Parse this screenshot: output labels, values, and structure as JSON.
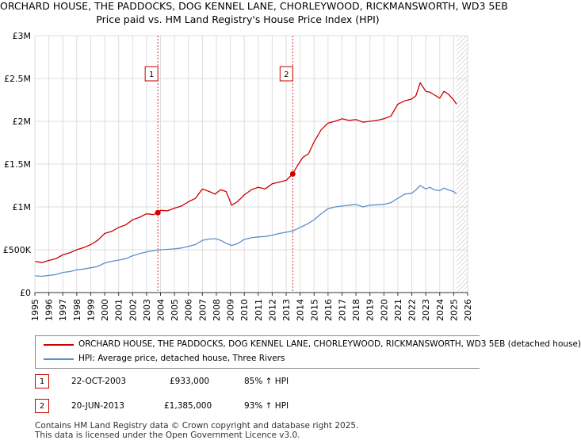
{
  "header": {
    "title": "ORCHARD HOUSE, THE PADDOCKS, DOG KENNEL LANE, CHORLEYWOOD, RICKMANSWORTH, WD3 5EB",
    "subtitle": "Price paid vs. HM Land Registry's House Price Index (HPI)"
  },
  "colors": {
    "property": "#cc0000",
    "hpi": "#5b8fc9",
    "sale_marker": "#cc0000",
    "future_hatch": "#bbbbbb"
  },
  "chart_data": {
    "type": "line",
    "title": "Price paid vs. HM Land Registry's House Price Index (HPI)",
    "xlabel": "",
    "ylabel": "",
    "xlim": [
      1995,
      2026
    ],
    "ylim": [
      0,
      3000000
    ],
    "yticks": [
      {
        "value": 0,
        "label": "£0"
      },
      {
        "value": 500000,
        "label": "£500K"
      },
      {
        "value": 1000000,
        "label": "£1M"
      },
      {
        "value": 1500000,
        "label": "£1.5M"
      },
      {
        "value": 2000000,
        "label": "£2M"
      },
      {
        "value": 2500000,
        "label": "£2.5M"
      },
      {
        "value": 3000000,
        "label": "£3M"
      }
    ],
    "xticks": [
      "1995",
      "1996",
      "1997",
      "1998",
      "1999",
      "2000",
      "2001",
      "2002",
      "2003",
      "2004",
      "2005",
      "2006",
      "2007",
      "2008",
      "2009",
      "2010",
      "2011",
      "2012",
      "2013",
      "2014",
      "2015",
      "2016",
      "2017",
      "2018",
      "2019",
      "2020",
      "2021",
      "2022",
      "2023",
      "2024",
      "2025",
      "2026"
    ],
    "series": [
      {
        "name": "ORCHARD HOUSE, THE PADDOCKS, DOG KENNEL LANE, CHORLEYWOOD, RICKMANSWORTH, WD3 5EB (detached house)",
        "color": "#cc0000",
        "x": [
          1995.0,
          1995.5,
          1996.0,
          1996.5,
          1997.0,
          1997.5,
          1998.0,
          1998.5,
          1999.0,
          1999.5,
          2000.0,
          2000.5,
          2001.0,
          2001.5,
          2002.0,
          2002.5,
          2003.0,
          2003.5,
          2003.81,
          2004.0,
          2004.5,
          2005.0,
          2005.5,
          2006.0,
          2006.5,
          2007.0,
          2007.5,
          2007.9,
          2008.3,
          2008.7,
          2009.1,
          2009.5,
          2010.0,
          2010.5,
          2011.0,
          2011.5,
          2012.0,
          2012.5,
          2013.0,
          2013.47,
          2013.8,
          2014.2,
          2014.6,
          2015.0,
          2015.5,
          2016.0,
          2016.5,
          2017.0,
          2017.5,
          2018.0,
          2018.5,
          2019.0,
          2019.5,
          2020.0,
          2020.5,
          2021.0,
          2021.5,
          2022.0,
          2022.3,
          2022.6,
          2023.0,
          2023.3,
          2023.6,
          2024.0,
          2024.3,
          2024.6,
          2025.0,
          2025.2
        ],
        "values": [
          365000,
          350000,
          375000,
          395000,
          440000,
          465000,
          500000,
          525000,
          560000,
          610000,
          690000,
          715000,
          760000,
          790000,
          850000,
          880000,
          920000,
          910000,
          933000,
          960000,
          955000,
          985000,
          1010000,
          1060000,
          1100000,
          1210000,
          1180000,
          1150000,
          1200000,
          1180000,
          1020000,
          1060000,
          1140000,
          1200000,
          1230000,
          1210000,
          1270000,
          1290000,
          1310000,
          1385000,
          1480000,
          1580000,
          1620000,
          1760000,
          1900000,
          1980000,
          2000000,
          2030000,
          2010000,
          2020000,
          1990000,
          2000000,
          2010000,
          2030000,
          2060000,
          2200000,
          2240000,
          2260000,
          2300000,
          2450000,
          2350000,
          2340000,
          2310000,
          2270000,
          2350000,
          2320000,
          2250000,
          2200000
        ]
      },
      {
        "name": "HPI: Average price, detached house, Three Rivers",
        "color": "#5b8fc9",
        "x": [
          1995.0,
          1995.5,
          1996.0,
          1996.5,
          1997.0,
          1997.5,
          1998.0,
          1998.5,
          1999.0,
          1999.5,
          2000.0,
          2000.5,
          2001.0,
          2001.5,
          2002.0,
          2002.5,
          2003.0,
          2003.5,
          2004.0,
          2004.5,
          2005.0,
          2005.5,
          2006.0,
          2006.5,
          2007.0,
          2007.5,
          2007.9,
          2008.3,
          2008.7,
          2009.1,
          2009.5,
          2010.0,
          2010.5,
          2011.0,
          2011.5,
          2012.0,
          2012.5,
          2013.0,
          2013.5,
          2014.0,
          2014.5,
          2015.0,
          2015.5,
          2016.0,
          2016.5,
          2017.0,
          2017.5,
          2018.0,
          2018.5,
          2019.0,
          2019.5,
          2020.0,
          2020.5,
          2021.0,
          2021.5,
          2022.0,
          2022.3,
          2022.6,
          2023.0,
          2023.3,
          2023.6,
          2024.0,
          2024.3,
          2024.6,
          2025.0,
          2025.2
        ],
        "values": [
          195000,
          190000,
          200000,
          210000,
          235000,
          245000,
          265000,
          275000,
          290000,
          305000,
          345000,
          365000,
          380000,
          395000,
          430000,
          455000,
          475000,
          490000,
          500000,
          505000,
          510000,
          520000,
          540000,
          560000,
          610000,
          625000,
          630000,
          610000,
          575000,
          550000,
          570000,
          620000,
          640000,
          650000,
          655000,
          670000,
          690000,
          705000,
          720000,
          760000,
          800000,
          850000,
          920000,
          980000,
          1000000,
          1010000,
          1020000,
          1030000,
          1000000,
          1020000,
          1025000,
          1030000,
          1050000,
          1100000,
          1150000,
          1160000,
          1200000,
          1250000,
          1210000,
          1230000,
          1200000,
          1190000,
          1220000,
          1200000,
          1180000,
          1150000
        ]
      }
    ],
    "annotations": [
      {
        "label": "1",
        "x": 2003.81,
        "y": 933000
      },
      {
        "label": "2",
        "x": 2013.47,
        "y": 1385000
      }
    ],
    "future_region_from": 2025.2
  },
  "legend": {
    "property": "ORCHARD HOUSE, THE PADDOCKS, DOG KENNEL LANE, CHORLEYWOOD, RICKMANSWORTH, WD3 5EB (detached house)",
    "hpi": "HPI: Average price, detached house, Three Rivers"
  },
  "sales": [
    {
      "num": "1",
      "date": "22-OCT-2003",
      "price": "£933,000",
      "delta": "85% ↑ HPI"
    },
    {
      "num": "2",
      "date": "20-JUN-2013",
      "price": "£1,385,000",
      "delta": "93% ↑ HPI"
    }
  ],
  "footer": {
    "line1": "Contains HM Land Registry data © Crown copyright and database right 2025.",
    "line2": "This data is licensed under the Open Government Licence v3.0."
  }
}
